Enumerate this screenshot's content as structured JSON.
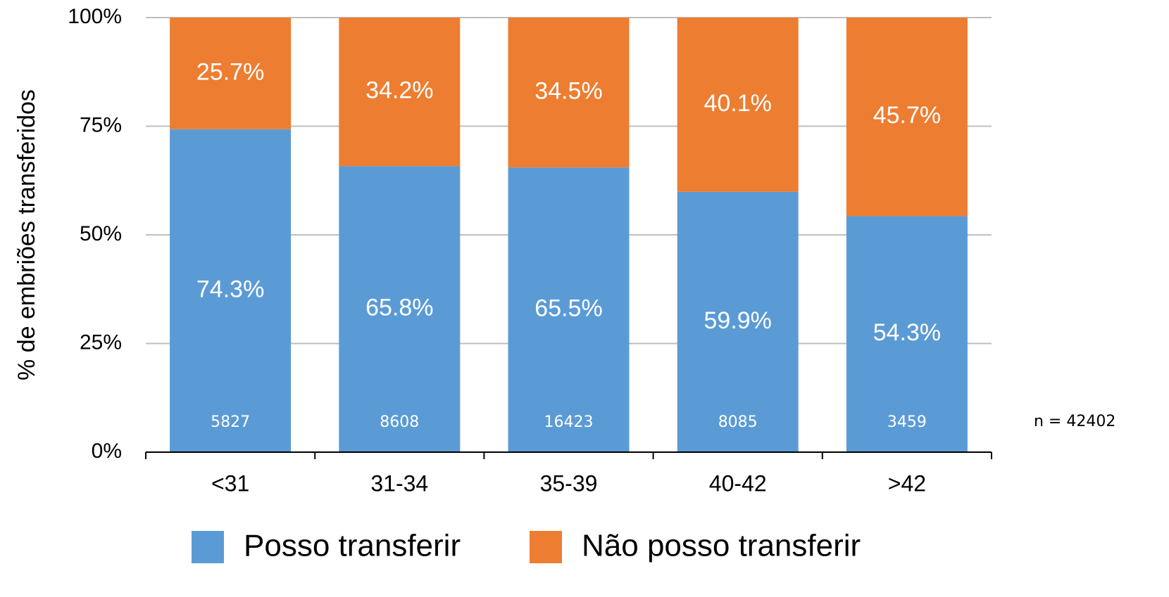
{
  "chart_data": {
    "type": "stacked_bar",
    "y_label": "% de embriões transferidos",
    "categories": [
      "<31",
      "31-34",
      "35-39",
      "40-42",
      ">42"
    ],
    "series": [
      {
        "name": "Posso transferir",
        "color": "#5b9bd5",
        "values": [
          74.3,
          65.8,
          65.5,
          59.9,
          54.3
        ],
        "value_labels": [
          "74.3%",
          "65.8%",
          "65.5%",
          "59.9%",
          "54.3%"
        ]
      },
      {
        "name": "Não posso transferir",
        "color": "#ed7d31",
        "values": [
          25.7,
          34.2,
          34.5,
          40.1,
          45.7
        ],
        "value_labels": [
          "25.7%",
          "34.2%",
          "34.5%",
          "40.1%",
          "45.7%"
        ]
      }
    ],
    "counts": [
      5827,
      8608,
      16423,
      8085,
      3459
    ],
    "annotation": "n = 42402",
    "ylim": [
      0,
      100
    ],
    "yticks": [
      {
        "value": 0,
        "label": "0%"
      },
      {
        "value": 25,
        "label": "25%"
      },
      {
        "value": 50,
        "label": "50%"
      },
      {
        "value": 75,
        "label": "75%"
      },
      {
        "value": 100,
        "label": "100%"
      }
    ],
    "grid": true
  }
}
